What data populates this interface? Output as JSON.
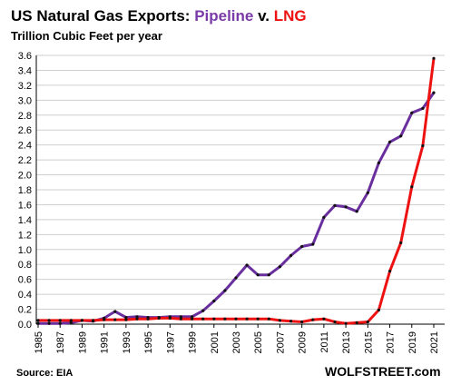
{
  "chart_data": {
    "type": "line",
    "title_prefix": "US Natural Gas Exports:",
    "title_series1": "Pipeline",
    "title_sep": "v.",
    "title_series2": "LNG",
    "subtitle": "Trillion Cubic Feet per year",
    "source": "Source: EIA",
    "brand": "WOLFSTREET.com",
    "ylim": [
      0,
      3.6
    ],
    "yticks": [
      "0.0",
      "0.2",
      "0.4",
      "0.6",
      "0.8",
      "1.0",
      "1.2",
      "1.4",
      "1.6",
      "1.8",
      "2.0",
      "2.2",
      "2.4",
      "2.6",
      "2.8",
      "3.0",
      "3.2",
      "3.4",
      "3.6"
    ],
    "xticks": [
      "1985",
      "1987",
      "1989",
      "1991",
      "1993",
      "1995",
      "1997",
      "1999",
      "2001",
      "2003",
      "2005",
      "2007",
      "2009",
      "2011",
      "2013",
      "2015",
      "2017",
      "2019",
      "2021"
    ],
    "x": [
      1985,
      1986,
      1987,
      1988,
      1989,
      1990,
      1991,
      1992,
      1993,
      1994,
      1995,
      1996,
      1997,
      1998,
      1999,
      2000,
      2001,
      2002,
      2003,
      2004,
      2005,
      2006,
      2007,
      2008,
      2009,
      2010,
      2011,
      2012,
      2013,
      2014,
      2015,
      2016,
      2017,
      2018,
      2019,
      2020,
      2021
    ],
    "grid": "horizontal",
    "colors": {
      "pipeline": "#6a2f9e",
      "lng": "#ee1111",
      "marker": "#111111",
      "grid": "#cfcfcf",
      "series1_text": "#7a3aa8",
      "series2_text": "#ee1111"
    },
    "series": [
      {
        "key": "pipeline",
        "values": [
          0.01,
          0.01,
          0.01,
          0.02,
          0.05,
          0.04,
          0.08,
          0.17,
          0.09,
          0.1,
          0.09,
          0.09,
          0.1,
          0.1,
          0.1,
          0.18,
          0.31,
          0.45,
          0.62,
          0.79,
          0.66,
          0.66,
          0.77,
          0.92,
          1.04,
          1.07,
          1.43,
          1.59,
          1.57,
          1.51,
          1.76,
          2.16,
          2.44,
          2.52,
          2.83,
          2.89,
          3.1
        ]
      },
      {
        "key": "lng",
        "values": [
          0.05,
          0.05,
          0.05,
          0.05,
          0.05,
          0.05,
          0.06,
          0.06,
          0.06,
          0.07,
          0.07,
          0.08,
          0.08,
          0.07,
          0.07,
          0.07,
          0.07,
          0.07,
          0.07,
          0.07,
          0.07,
          0.07,
          0.05,
          0.04,
          0.03,
          0.06,
          0.07,
          0.03,
          0.01,
          0.02,
          0.03,
          0.19,
          0.71,
          1.09,
          1.84,
          2.39,
          3.56
        ]
      }
    ]
  }
}
